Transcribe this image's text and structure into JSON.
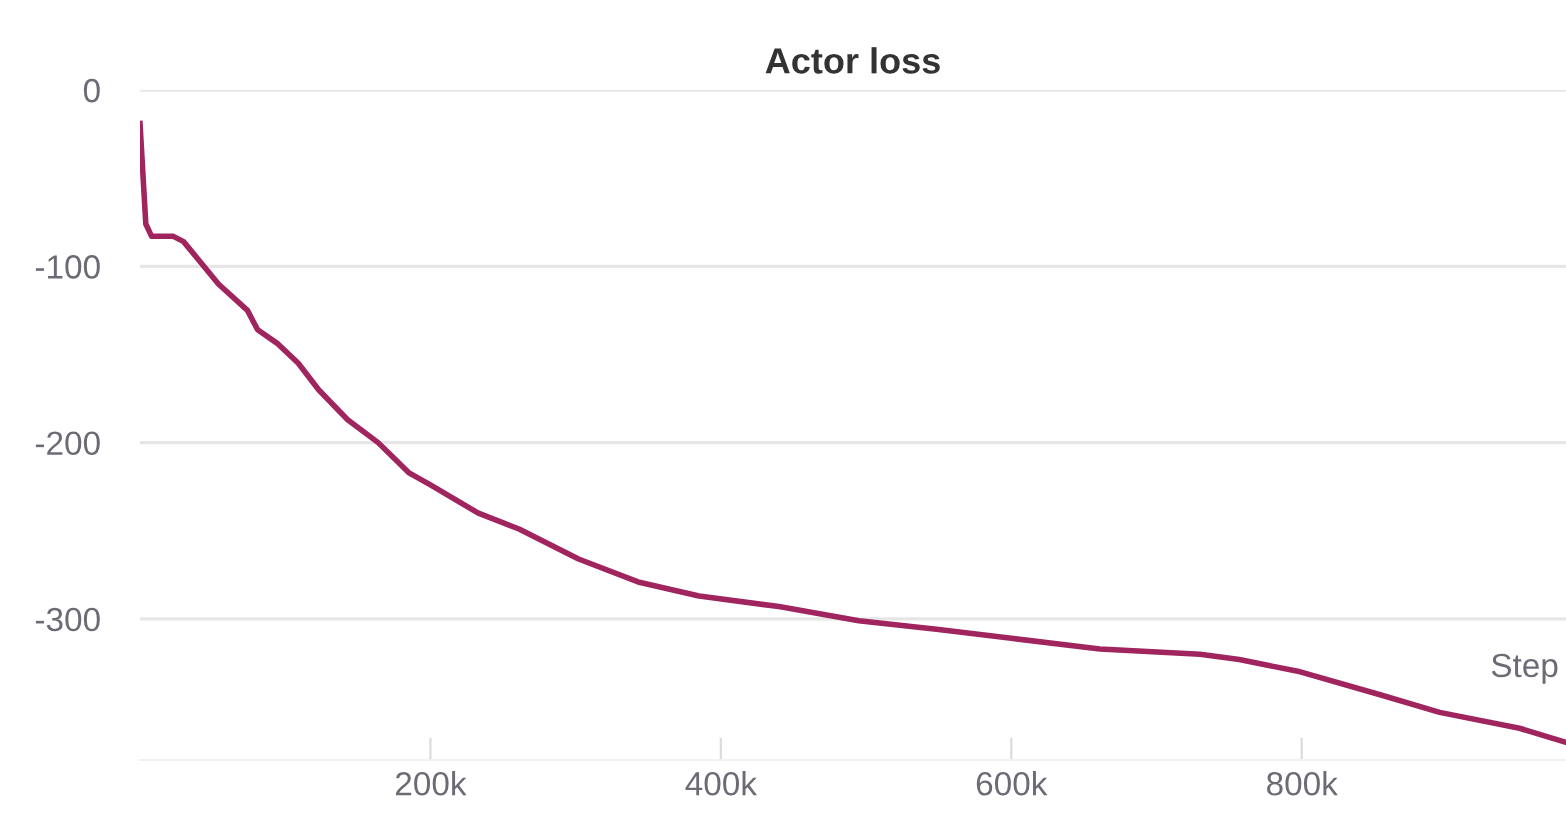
{
  "chart_data": {
    "type": "line",
    "title": "Actor loss",
    "xlabel": "Step",
    "x": [
      0,
      4000,
      8000,
      23000,
      30000,
      40000,
      54000,
      74000,
      81000,
      95000,
      109000,
      123000,
      143000,
      164000,
      185000,
      200000,
      233000,
      261000,
      302000,
      343000,
      385000,
      440000,
      495000,
      550000,
      600000,
      661000,
      730000,
      757000,
      799000,
      854000,
      895000,
      950000,
      982000
    ],
    "series": [
      {
        "color": "#a0245e",
        "values": [
          -19,
          -76,
          -83,
          -83,
          -86,
          -96,
          -110,
          -125,
          -136,
          -144,
          -155,
          -170,
          -187,
          -200,
          -217,
          -224,
          -240,
          -249,
          -266,
          -279,
          -287,
          -293,
          -301,
          -306,
          -311,
          -317,
          -320,
          -323,
          -330,
          -343,
          -353,
          -362,
          -370
        ]
      }
    ],
    "xlim": [
      0,
      982000
    ],
    "ylim": [
      -380,
      0
    ],
    "xticks": [
      {
        "value": 200000,
        "label": "200k"
      },
      {
        "value": 400000,
        "label": "400k"
      },
      {
        "value": 600000,
        "label": "600k"
      },
      {
        "value": 800000,
        "label": "800k"
      }
    ],
    "yticks": [
      -300,
      -200,
      -100,
      0
    ],
    "grid": "y",
    "marker": "none",
    "line_style": "solid",
    "legend": false
  }
}
